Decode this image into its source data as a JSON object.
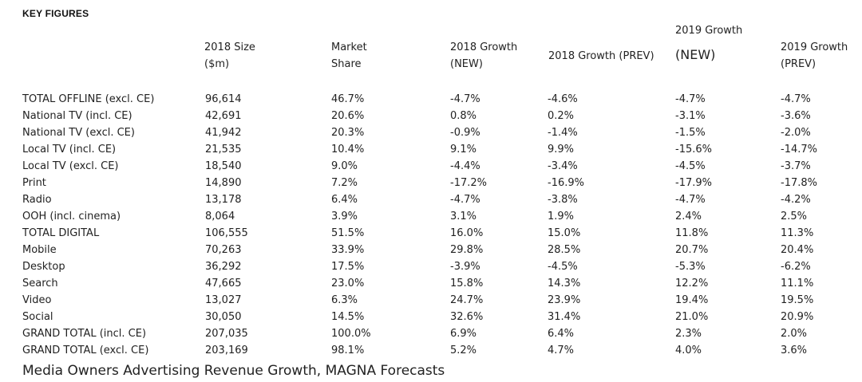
{
  "heading": "KEY FIGURES",
  "columns": [
    {
      "lines": [
        "2018 Size",
        "($m)"
      ]
    },
    {
      "lines": [
        "Market",
        "Share"
      ]
    },
    {
      "lines": [
        "2018 Growth",
        "(NEW)"
      ]
    },
    {
      "lines": [
        "2018 Growth (PREV)"
      ]
    },
    {
      "lines": [
        "2019 Growth",
        "(NEW)"
      ]
    },
    {
      "lines": [
        "2019 Growth",
        "(PREV)"
      ]
    }
  ],
  "rows": [
    [
      "TOTAL OFFLINE (excl. CE)",
      "96,614",
      "46.7%",
      "-4.7%",
      "-4.6%",
      "-4.7%",
      "-4.7%"
    ],
    [
      "National TV (incl. CE)",
      "42,691",
      "20.6%",
      "0.8%",
      "0.2%",
      "-3.1%",
      "-3.6%"
    ],
    [
      "National TV (excl. CE)",
      "41,942",
      "20.3%",
      "-0.9%",
      "-1.4%",
      "-1.5%",
      "-2.0%"
    ],
    [
      "Local TV (incl. CE)",
      "21,535",
      "10.4%",
      "9.1%",
      "9.9%",
      "-15.6%",
      "-14.7%"
    ],
    [
      "Local TV (excl. CE)",
      "18,540",
      "9.0%",
      "-4.4%",
      "-3.4%",
      "-4.5%",
      "-3.7%"
    ],
    [
      "Print",
      "14,890",
      "7.2%",
      "-17.2%",
      "-16.9%",
      "-17.9%",
      "-17.8%"
    ],
    [
      "Radio",
      "13,178",
      "6.4%",
      "-4.7%",
      "-3.8%",
      "-4.7%",
      "-4.2%"
    ],
    [
      "OOH (incl. cinema)",
      "8,064",
      "3.9%",
      "3.1%",
      "1.9%",
      "2.4%",
      "2.5%"
    ],
    [
      "TOTAL DIGITAL",
      "106,555",
      "51.5%",
      "16.0%",
      "15.0%",
      "11.8%",
      "11.3%"
    ],
    [
      "Mobile",
      "70,263",
      "33.9%",
      "29.8%",
      "28.5%",
      "20.7%",
      "20.4%"
    ],
    [
      "Desktop",
      "36,292",
      "17.5%",
      "-3.9%",
      "-4.5%",
      "-5.3%",
      "-6.2%"
    ],
    [
      "Search",
      "47,665",
      "23.0%",
      "15.8%",
      "14.3%",
      "12.2%",
      "11.1%"
    ],
    [
      "Video",
      "13,027",
      "6.3%",
      "24.7%",
      "23.9%",
      "19.4%",
      "19.5%"
    ],
    [
      "Social",
      "30,050",
      "14.5%",
      "32.6%",
      "31.4%",
      "21.0%",
      "20.9%"
    ],
    [
      "GRAND TOTAL (incl. CE)",
      "207,035",
      "100.0%",
      "6.9%",
      "6.4%",
      "2.3%",
      "2.0%"
    ],
    [
      "GRAND TOTAL (excl. CE)",
      "203,169",
      "98.1%",
      "5.2%",
      "4.7%",
      "4.0%",
      "3.6%"
    ]
  ],
  "caption": "Media Owners Advertising Revenue Growth, MAGNA Forecasts"
}
